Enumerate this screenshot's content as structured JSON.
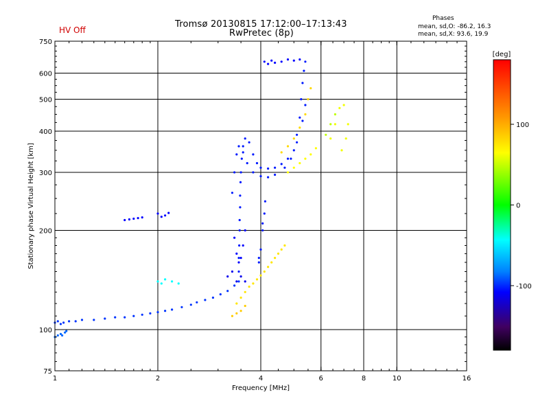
{
  "header": {
    "status": "HV Off",
    "title": "Tromsø 20130815 17:12:00–17:13:43",
    "subtitle": "RwPretec (8p)",
    "phases_title": "Phases",
    "phases_o": "mean, sd,O: -86.2, 16.3",
    "phases_x": "mean, sd,X: 93.6, 19.9"
  },
  "colors": {
    "status_red": "#d00000",
    "grid": "#000000"
  },
  "chart_data": {
    "type": "scatter",
    "xlabel": "Frequency [MHz]",
    "ylabel": "Stationary phase Virtual Height [km]",
    "x_scale": "log",
    "y_scale": "log",
    "xlim": [
      1,
      16
    ],
    "ylim": [
      75,
      750
    ],
    "x_ticks": [
      1,
      2,
      4,
      6,
      8,
      10,
      16
    ],
    "x_tick_labels": [
      "1",
      "2",
      "4",
      "6",
      "8",
      "10",
      "16"
    ],
    "y_ticks": [
      75,
      100,
      200,
      300,
      400,
      500,
      600,
      750
    ],
    "y_tick_labels": [
      "75",
      "100",
      "200",
      "300",
      "400",
      "500",
      "600",
      "750"
    ],
    "colorbar": {
      "label": "[deg]",
      "min": -180,
      "max": 180,
      "ticks": [
        100,
        0,
        -100
      ],
      "tick_labels": [
        "100",
        "0",
        "-100"
      ]
    },
    "grid": true,
    "series": [
      {
        "phase": -95,
        "points": [
          [
            1.0,
            105
          ],
          [
            1.02,
            106
          ],
          [
            1.04,
            104
          ],
          [
            1.06,
            105
          ],
          [
            1.1,
            106
          ],
          [
            1.15,
            106
          ],
          [
            1.2,
            107
          ],
          [
            1.3,
            107
          ],
          [
            1.4,
            108
          ],
          [
            1.5,
            109
          ],
          [
            1.6,
            109
          ],
          [
            1.7,
            110
          ],
          [
            1.8,
            111
          ],
          [
            1.9,
            112
          ],
          [
            2.0,
            113
          ],
          [
            2.1,
            114
          ],
          [
            2.2,
            115
          ],
          [
            2.35,
            117
          ],
          [
            2.5,
            119
          ],
          [
            2.6,
            121
          ],
          [
            2.75,
            123
          ],
          [
            2.9,
            125
          ],
          [
            3.05,
            128
          ],
          [
            3.2,
            131
          ],
          [
            3.35,
            136
          ],
          [
            3.45,
            140
          ]
        ]
      },
      {
        "phase": -85,
        "points": [
          [
            1.0,
            95
          ],
          [
            1.02,
            96
          ],
          [
            1.04,
            97
          ],
          [
            1.05,
            96
          ],
          [
            1.07,
            98
          ],
          [
            1.08,
            99
          ]
        ]
      },
      {
        "phase": -100,
        "points": [
          [
            3.45,
            150
          ],
          [
            3.45,
            165
          ],
          [
            3.46,
            180
          ],
          [
            3.47,
            200
          ],
          [
            3.47,
            215
          ],
          [
            3.48,
            235
          ],
          [
            3.48,
            255
          ],
          [
            3.49,
            280
          ],
          [
            3.5,
            300
          ],
          [
            3.52,
            330
          ],
          [
            3.55,
            360
          ],
          [
            3.6,
            380
          ],
          [
            3.7,
            370
          ],
          [
            3.8,
            340
          ],
          [
            3.9,
            320
          ],
          [
            4.0,
            310
          ],
          [
            4.2,
            308
          ],
          [
            4.4,
            310
          ],
          [
            4.6,
            318
          ],
          [
            4.8,
            330
          ],
          [
            5.0,
            350
          ],
          [
            5.1,
            390
          ],
          [
            5.2,
            440
          ],
          [
            5.25,
            500
          ],
          [
            5.3,
            560
          ],
          [
            5.35,
            610
          ],
          [
            5.4,
            650
          ]
        ]
      },
      {
        "phase": -100,
        "points": [
          [
            3.3,
            260
          ],
          [
            3.35,
            300
          ],
          [
            3.4,
            340
          ],
          [
            3.45,
            360
          ],
          [
            3.55,
            345
          ],
          [
            3.65,
            320
          ],
          [
            3.8,
            300
          ],
          [
            4.0,
            292
          ],
          [
            4.2,
            290
          ],
          [
            4.4,
            295
          ],
          [
            4.7,
            310
          ],
          [
            4.9,
            330
          ],
          [
            5.1,
            370
          ],
          [
            5.3,
            430
          ],
          [
            5.4,
            480
          ]
        ]
      },
      {
        "phase": -105,
        "points": [
          [
            3.35,
            190
          ],
          [
            3.4,
            170
          ],
          [
            3.45,
            160
          ],
          [
            3.5,
            165
          ],
          [
            3.55,
            180
          ],
          [
            3.6,
            200
          ]
        ]
      },
      {
        "phase": -100,
        "points": [
          [
            3.95,
            160
          ],
          [
            4.0,
            175
          ],
          [
            4.05,
            200
          ],
          [
            4.1,
            225
          ],
          [
            4.12,
            245
          ],
          [
            4.05,
            210
          ],
          [
            3.95,
            165
          ]
        ]
      },
      {
        "phase": -110,
        "points": [
          [
            3.2,
            145
          ],
          [
            3.3,
            150
          ],
          [
            3.4,
            140
          ],
          [
            3.5,
            145
          ],
          [
            3.6,
            140
          ]
        ]
      },
      {
        "phase": -105,
        "points": [
          [
            4.1,
            650
          ],
          [
            4.2,
            640
          ],
          [
            4.3,
            655
          ],
          [
            4.4,
            645
          ],
          [
            4.6,
            650
          ],
          [
            4.8,
            660
          ],
          [
            5.0,
            655
          ],
          [
            5.2,
            660
          ]
        ]
      },
      {
        "phase": 110,
        "points": [
          [
            3.4,
            120
          ],
          [
            3.5,
            125
          ],
          [
            3.6,
            130
          ],
          [
            3.7,
            135
          ],
          [
            3.8,
            138
          ],
          [
            3.9,
            142
          ],
          [
            4.0,
            146
          ],
          [
            4.1,
            150
          ],
          [
            4.2,
            155
          ],
          [
            4.3,
            160
          ],
          [
            4.4,
            165
          ],
          [
            4.5,
            170
          ],
          [
            4.6,
            175
          ],
          [
            4.7,
            180
          ]
        ]
      },
      {
        "phase": 120,
        "points": [
          [
            3.3,
            110
          ],
          [
            3.4,
            112
          ],
          [
            3.5,
            114
          ],
          [
            3.6,
            118
          ]
        ]
      },
      {
        "phase": 115,
        "points": [
          [
            4.6,
            345
          ],
          [
            4.8,
            360
          ],
          [
            5.0,
            380
          ],
          [
            5.2,
            410
          ],
          [
            5.4,
            450
          ],
          [
            5.5,
            500
          ],
          [
            5.6,
            540
          ]
        ]
      },
      {
        "phase": 100,
        "points": [
          [
            4.8,
            300
          ],
          [
            5.0,
            310
          ],
          [
            5.2,
            320
          ],
          [
            5.4,
            330
          ],
          [
            5.6,
            340
          ],
          [
            5.8,
            355
          ]
        ]
      },
      {
        "phase": 95,
        "points": [
          [
            6.4,
            380
          ],
          [
            6.6,
            420
          ],
          [
            6.8,
            470
          ],
          [
            7.0,
            480
          ],
          [
            7.2,
            420
          ],
          [
            7.1,
            380
          ],
          [
            6.9,
            350
          ]
        ]
      },
      {
        "phase": 75,
        "points": [
          [
            6.2,
            390
          ],
          [
            6.4,
            420
          ],
          [
            6.6,
            450
          ]
        ]
      },
      {
        "phase": -105,
        "points": [
          [
            1.6,
            215
          ],
          [
            1.65,
            216
          ],
          [
            1.7,
            217
          ],
          [
            1.75,
            218
          ],
          [
            1.8,
            219
          ],
          [
            2.0,
            225
          ],
          [
            2.05,
            220
          ],
          [
            2.1,
            222
          ],
          [
            2.15,
            226
          ]
        ]
      },
      {
        "phase": -40,
        "points": [
          [
            2.0,
            140
          ],
          [
            2.05,
            138
          ],
          [
            2.1,
            142
          ],
          [
            2.2,
            140
          ],
          [
            2.3,
            138
          ]
        ]
      }
    ],
    "annotations": [
      "HV Off",
      "Phases"
    ]
  }
}
